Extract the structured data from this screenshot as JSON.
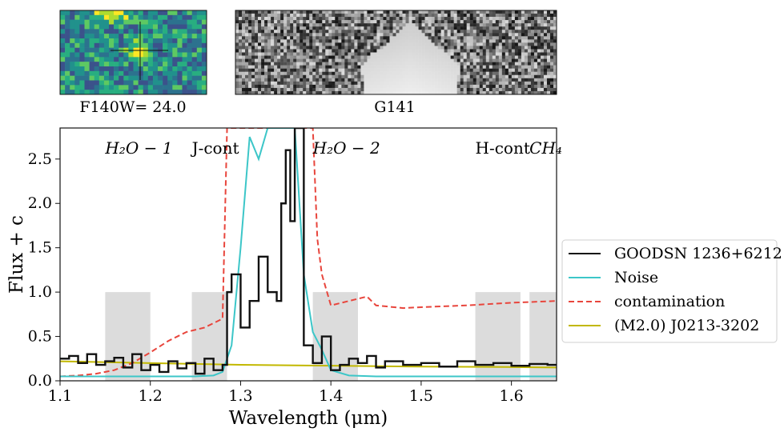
{
  "panels": {
    "thumbnail": {
      "caption": "F140W= 24.0"
    },
    "spectrum2d": {
      "caption": "G141"
    }
  },
  "chart_data": {
    "type": "line",
    "xlabel": "Wavelength (μm)",
    "ylabel": "Flux + c",
    "xlim": [
      1.1,
      1.65
    ],
    "ylim": [
      0.0,
      2.85
    ],
    "x_ticks": [
      "1.1",
      "1.2",
      "1.3",
      "1.4",
      "1.5",
      "1.6"
    ],
    "x_tick_values": [
      1.1,
      1.2,
      1.3,
      1.4,
      1.5,
      1.6
    ],
    "y_ticks": [
      "0.0",
      "0.5",
      "1.0",
      "1.5",
      "2.0",
      "2.5"
    ],
    "y_tick_values": [
      0.0,
      0.5,
      1.0,
      1.5,
      2.0,
      2.5
    ],
    "grid": false,
    "legend_placement": "right",
    "shaded_bands": [
      {
        "x0": 1.15,
        "x1": 1.2,
        "height": 1.0,
        "label": "H₂O − 1"
      },
      {
        "x0": 1.246,
        "x1": 1.285,
        "height": 1.0,
        "label": "J-cont"
      },
      {
        "x0": 1.38,
        "x1": 1.43,
        "height": 1.0,
        "label": "H₂O − 2"
      },
      {
        "x0": 1.56,
        "x1": 1.61,
        "height": 1.0,
        "label": "H-cont"
      },
      {
        "x0": 1.62,
        "x1": 1.65,
        "height": 1.0,
        "label": "CH₄"
      }
    ],
    "series": [
      {
        "name": "GOODSN 1236+6212",
        "color": "#111111",
        "style": "steps",
        "x": [
          1.1,
          1.11,
          1.12,
          1.13,
          1.14,
          1.15,
          1.16,
          1.17,
          1.18,
          1.19,
          1.2,
          1.21,
          1.22,
          1.23,
          1.24,
          1.25,
          1.26,
          1.27,
          1.28,
          1.285,
          1.29,
          1.3,
          1.31,
          1.32,
          1.33,
          1.34,
          1.345,
          1.35,
          1.355,
          1.36,
          1.37,
          1.38,
          1.39,
          1.4,
          1.41,
          1.42,
          1.43,
          1.44,
          1.45,
          1.46,
          1.48,
          1.5,
          1.52,
          1.54,
          1.56,
          1.58,
          1.6,
          1.62,
          1.64,
          1.65
        ],
        "y": [
          0.25,
          0.28,
          0.2,
          0.3,
          0.18,
          0.22,
          0.26,
          0.15,
          0.3,
          0.12,
          0.18,
          0.1,
          0.22,
          0.14,
          0.2,
          0.08,
          0.25,
          0.12,
          0.18,
          1.0,
          1.2,
          0.6,
          0.9,
          1.4,
          1.0,
          0.9,
          2.0,
          2.6,
          1.8,
          2.85,
          0.4,
          0.2,
          0.5,
          0.12,
          0.18,
          0.25,
          0.2,
          0.28,
          0.15,
          0.22,
          0.18,
          0.2,
          0.16,
          0.22,
          0.18,
          0.2,
          0.17,
          0.19,
          0.18,
          0.18
        ]
      },
      {
        "name": "Noise",
        "color": "#3cc6c8",
        "style": "solid",
        "x": [
          1.1,
          1.15,
          1.2,
          1.25,
          1.27,
          1.28,
          1.29,
          1.3,
          1.31,
          1.32,
          1.33,
          1.34,
          1.35,
          1.36,
          1.37,
          1.38,
          1.39,
          1.4,
          1.42,
          1.45,
          1.5,
          1.55,
          1.6,
          1.65
        ],
        "y": [
          0.05,
          0.05,
          0.05,
          0.05,
          0.06,
          0.1,
          0.4,
          1.5,
          2.75,
          2.5,
          2.85,
          2.85,
          2.85,
          2.85,
          1.2,
          0.55,
          0.35,
          0.12,
          0.06,
          0.05,
          0.05,
          0.05,
          0.05,
          0.05
        ]
      },
      {
        "name": "contamination",
        "color": "#e8453c",
        "style": "dashed",
        "x": [
          1.1,
          1.12,
          1.14,
          1.16,
          1.18,
          1.2,
          1.22,
          1.24,
          1.26,
          1.27,
          1.28,
          1.285,
          1.29,
          1.3,
          1.32,
          1.34,
          1.36,
          1.37,
          1.38,
          1.385,
          1.39,
          1.4,
          1.42,
          1.44,
          1.45,
          1.48,
          1.5,
          1.55,
          1.6,
          1.65
        ],
        "y": [
          0.05,
          0.06,
          0.08,
          0.12,
          0.2,
          0.32,
          0.45,
          0.55,
          0.6,
          0.65,
          0.7,
          2.85,
          2.85,
          2.85,
          2.85,
          2.85,
          2.85,
          2.85,
          2.85,
          1.6,
          1.2,
          0.85,
          0.9,
          0.95,
          0.85,
          0.82,
          0.83,
          0.85,
          0.88,
          0.9
        ]
      },
      {
        "name": "(M2.0) J0213-3202",
        "color": "#c2b800",
        "style": "solid",
        "x": [
          1.1,
          1.2,
          1.3,
          1.4,
          1.5,
          1.6,
          1.65
        ],
        "y": [
          0.22,
          0.2,
          0.18,
          0.17,
          0.16,
          0.155,
          0.15
        ]
      }
    ]
  }
}
